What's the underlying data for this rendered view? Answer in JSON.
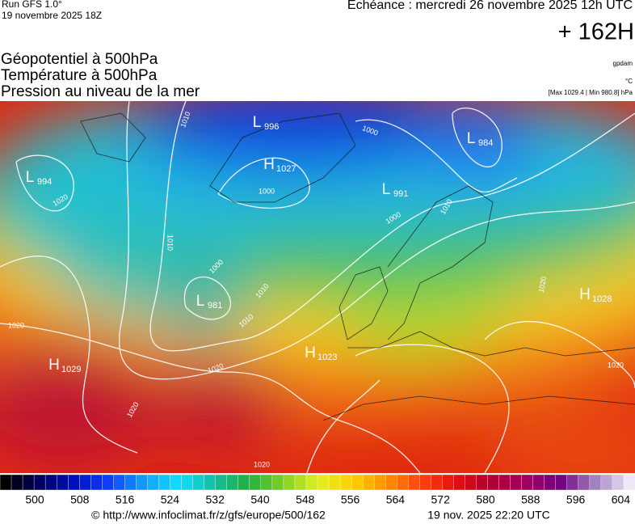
{
  "header": {
    "run": "Run GFS 1.0°",
    "date": "19 novembre 2025 18Z",
    "echeance": "Echéance : mercredi 26 novembre 2025 12h UTC",
    "lead": "+ 162H"
  },
  "titles": [
    "Géopotentiel à 500hPa",
    "Température à 500hPa",
    "Pression au niveau de la mer"
  ],
  "units": [
    "gpdam",
    "°C",
    "[Max 1029.4 | Min 980.8] hPa"
  ],
  "centers": [
    {
      "type": "L",
      "value": "996"
    },
    {
      "type": "H",
      "value": "1027"
    },
    {
      "type": "L",
      "value": "994"
    },
    {
      "type": "L",
      "value": "991"
    },
    {
      "type": "L",
      "value": "984"
    },
    {
      "type": "L",
      "value": "981"
    },
    {
      "type": "H",
      "value": "1029"
    },
    {
      "type": "H",
      "value": "1023"
    },
    {
      "type": "H",
      "value": "1028"
    }
  ],
  "isobar_labels": [
    "1010",
    "1000",
    "1000",
    "1020",
    "1010",
    "1000",
    "1010",
    "1010",
    "1020",
    "1020",
    "1020",
    "1020",
    "1010",
    "1000",
    "1020",
    "1020"
  ],
  "colorbar_labels": [
    "500",
    "508",
    "516",
    "524",
    "532",
    "540",
    "548",
    "556",
    "564",
    "572",
    "580",
    "588",
    "596",
    "604"
  ],
  "footer": {
    "url": "© http://www.infoclimat.fr/z/gfs/europe/500/162",
    "timestamp": "19 nov. 2025 22:20 UTC"
  }
}
